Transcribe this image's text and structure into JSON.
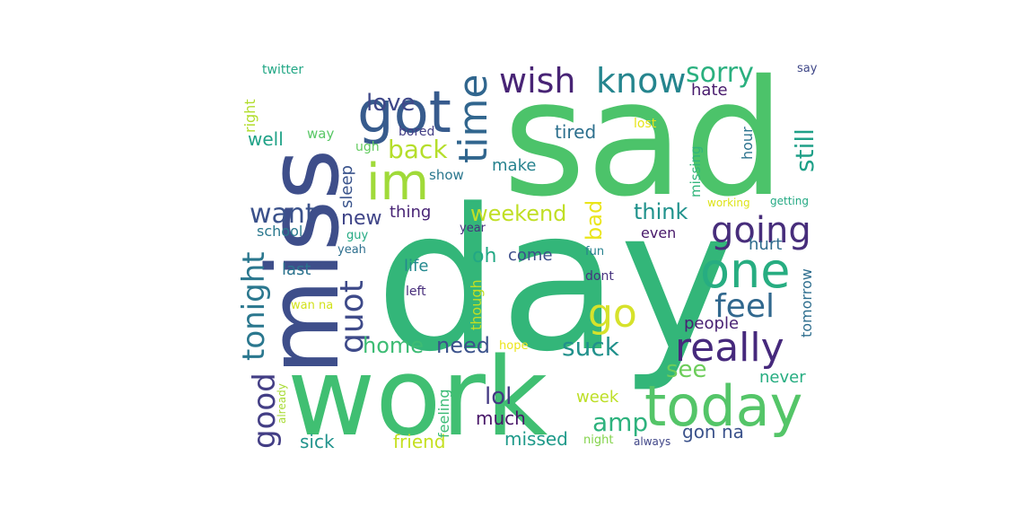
{
  "word_cloud": {
    "words": [
      {
        "text": "sad",
        "color": "#4cc36a"
      },
      {
        "text": "day",
        "color": "#33b679"
      },
      {
        "text": "work",
        "color": "#40bf72"
      },
      {
        "text": "miss",
        "color": "#3e4e8a"
      },
      {
        "text": "today",
        "color": "#54c568"
      },
      {
        "text": "one",
        "color": "#27ad81"
      },
      {
        "text": "got",
        "color": "#375b8d"
      },
      {
        "text": "im",
        "color": "#a0da39"
      },
      {
        "text": "really",
        "color": "#46297c"
      },
      {
        "text": "going",
        "color": "#472d7b"
      },
      {
        "text": "know",
        "color": "#25858e"
      },
      {
        "text": "wish",
        "color": "#482475"
      },
      {
        "text": "sorry",
        "color": "#2ab07f"
      },
      {
        "text": "time",
        "color": "#31668e"
      },
      {
        "text": "feel",
        "color": "#31688e"
      },
      {
        "text": "go",
        "color": "#d6e22b"
      },
      {
        "text": "quot",
        "color": "#3e4a89"
      },
      {
        "text": "tonight",
        "color": "#2a778e"
      },
      {
        "text": "good",
        "color": "#433e85"
      },
      {
        "text": "want",
        "color": "#3b528b"
      },
      {
        "text": "back",
        "color": "#b5de2b"
      },
      {
        "text": "weekend",
        "color": "#c0df25"
      },
      {
        "text": "love",
        "color": "#3f4889"
      },
      {
        "text": "suck",
        "color": "#21918c"
      },
      {
        "text": "think",
        "color": "#20928c"
      },
      {
        "text": "amp",
        "color": "#2db27d"
      },
      {
        "text": "lol",
        "color": "#443983"
      },
      {
        "text": "still",
        "color": "#1fa088"
      },
      {
        "text": "need",
        "color": "#3b528b"
      },
      {
        "text": "home",
        "color": "#3dbc74"
      },
      {
        "text": "new",
        "color": "#404588"
      },
      {
        "text": "bad",
        "color": "#eae51a"
      },
      {
        "text": "see",
        "color": "#6ccd5a"
      },
      {
        "text": "well",
        "color": "#1fa287"
      },
      {
        "text": "oh",
        "color": "#22a884"
      },
      {
        "text": "much",
        "color": "#481668"
      },
      {
        "text": "sick",
        "color": "#20938c"
      },
      {
        "text": "friend",
        "color": "#c5e021"
      },
      {
        "text": "missed",
        "color": "#1f9a8a"
      },
      {
        "text": "gon na",
        "color": "#3b528b"
      },
      {
        "text": "tired",
        "color": "#2d708e"
      },
      {
        "text": "make",
        "color": "#26828e"
      },
      {
        "text": "hate",
        "color": "#481b6d"
      },
      {
        "text": "come",
        "color": "#3d4e8a"
      },
      {
        "text": "thing",
        "color": "#482475"
      },
      {
        "text": "week",
        "color": "#bddf26"
      },
      {
        "text": "people",
        "color": "#482173"
      },
      {
        "text": "hurt",
        "color": "#2f6c8e"
      },
      {
        "text": "never",
        "color": "#26ad81"
      },
      {
        "text": "life",
        "color": "#23898e"
      },
      {
        "text": "last",
        "color": "#2c738e"
      },
      {
        "text": "even",
        "color": "#48186a"
      },
      {
        "text": "school",
        "color": "#2a788e"
      },
      {
        "text": "sleep",
        "color": "#3a548c"
      },
      {
        "text": "right",
        "color": "#b2dd2d"
      },
      {
        "text": "missing",
        "color": "#31b57b"
      },
      {
        "text": "feeling",
        "color": "#3bbb75"
      },
      {
        "text": "though",
        "color": "#c2df23"
      },
      {
        "text": "tomorrow",
        "color": "#2e6e8e"
      },
      {
        "text": "hour",
        "color": "#2c738e"
      },
      {
        "text": "twitter",
        "color": "#22a785"
      },
      {
        "text": "bored",
        "color": "#433e85"
      },
      {
        "text": "way",
        "color": "#58c765"
      },
      {
        "text": "ugh",
        "color": "#62cb5f"
      },
      {
        "text": "show",
        "color": "#2a778e"
      },
      {
        "text": "lost",
        "color": "#e7e419"
      },
      {
        "text": "say",
        "color": "#3f4788"
      },
      {
        "text": "guy",
        "color": "#24aa83"
      },
      {
        "text": "yeah",
        "color": "#2e6f8e"
      },
      {
        "text": "year",
        "color": "#46327e"
      },
      {
        "text": "fun",
        "color": "#26818e"
      },
      {
        "text": "dont",
        "color": "#46337f"
      },
      {
        "text": "left",
        "color": "#472d7b"
      },
      {
        "text": "wan na",
        "color": "#d2e21b"
      },
      {
        "text": "hope",
        "color": "#ece51b"
      },
      {
        "text": "already",
        "color": "#a8db34"
      },
      {
        "text": "night",
        "color": "#83d34b"
      },
      {
        "text": "always",
        "color": "#404688"
      },
      {
        "text": "working",
        "color": "#dde318"
      },
      {
        "text": "getting",
        "color": "#23a983"
      }
    ]
  }
}
